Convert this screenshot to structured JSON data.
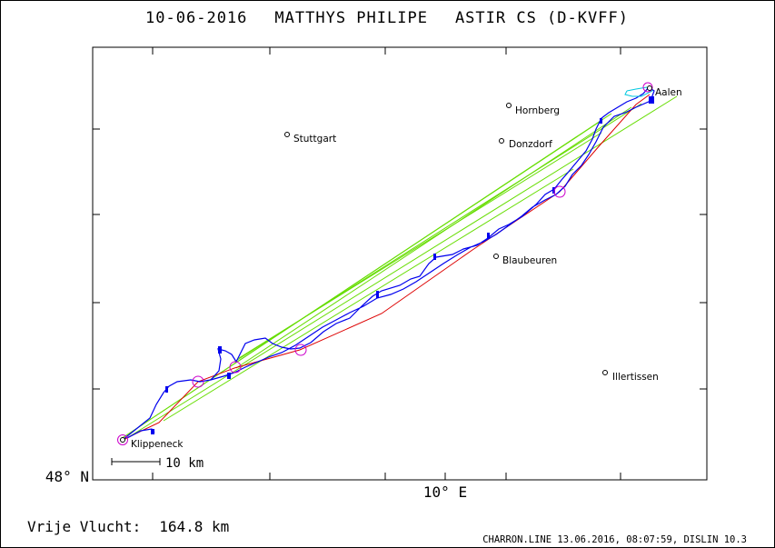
{
  "header": {
    "date": "10-06-2016",
    "pilot": "MATTHYS PHILIPE",
    "glider": "ASTIR CS (D-KVFF)"
  },
  "chart_data": {
    "type": "line",
    "title": "10-06-2016    MATTHYS PHILIPE    ASTIR CS (D-KVFF)",
    "y_axis_label": "48° N",
    "x_axis_label": "10° E",
    "scale_bar_label": "10 km",
    "cities": [
      {
        "name": "Aalen"
      },
      {
        "name": "Hornberg"
      },
      {
        "name": "Stuttgart"
      },
      {
        "name": "Donzdorf"
      },
      {
        "name": "Blaubeuren"
      },
      {
        "name": "Illertissen"
      },
      {
        "name": "Klippeneck"
      }
    ],
    "series": [
      {
        "name": "",
        "color": "#0000ee",
        "kind": "flight-track"
      },
      {
        "name": "",
        "color": "#dd0000",
        "kind": "task-line"
      },
      {
        "name": "",
        "color": "#66dd00",
        "kind": "straight-lines"
      },
      {
        "name": "",
        "color": "#00c8e0",
        "kind": "flight-track"
      }
    ],
    "turnpoint_color": "#cc00cc"
  },
  "footer": {
    "distance_label": "Vrije Vlucht:",
    "distance_value": "164.8 km",
    "credits": "CHARRON.LINE 13.06.2016, 08:07:59, DISLIN 10.3"
  }
}
